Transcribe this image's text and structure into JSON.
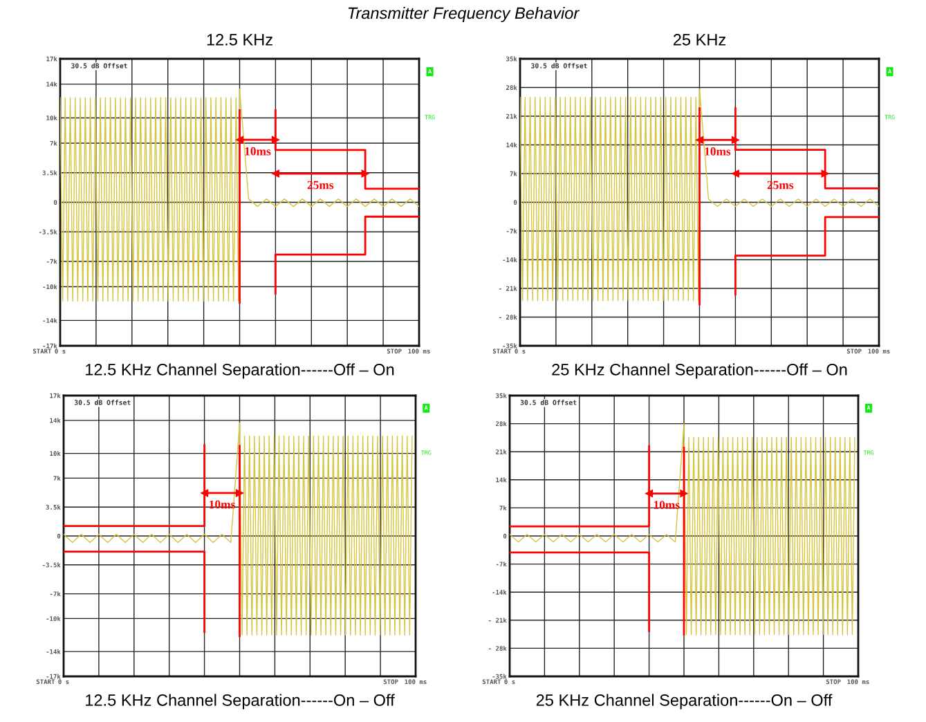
{
  "chart_data": [
    {
      "type": "line",
      "title": "Transmitter Frequency Behavior",
      "subtitle": "12.5 KHz",
      "xlabel": "12.5 KHz Channel Separation------Off – On",
      "xlim": [
        0,
        100
      ],
      "ylim": [
        -17,
        17
      ],
      "xticks": [
        {
          "value": 0,
          "label": "0 s"
        },
        {
          "value": 10,
          "label": null
        },
        {
          "value": 20,
          "label": null
        },
        {
          "value": 30,
          "label": null
        },
        {
          "value": 40,
          "label": null
        },
        {
          "value": 50,
          "label": null
        },
        {
          "value": 60,
          "label": null
        },
        {
          "value": 70,
          "label": null
        },
        {
          "value": 80,
          "label": null
        },
        {
          "value": 90,
          "label": null
        },
        {
          "value": 100,
          "label": "100 ms"
        }
      ],
      "yticks": [
        {
          "value": -17,
          "label": "-17k"
        },
        {
          "value": -14,
          "label": "-14k"
        },
        {
          "value": -10,
          "label": "-10k"
        },
        {
          "value": -7,
          "label": "-7k"
        },
        {
          "value": -3.5,
          "label": "-3.5k"
        },
        0,
        {
          "value": 3.5,
          "label": "3.5k"
        },
        {
          "value": 7,
          "label": "7k"
        },
        {
          "value": 10,
          "label": "10k"
        },
        {
          "value": 14,
          "label": "14k"
        },
        {
          "value": 17,
          "label": "17k"
        }
      ],
      "grid": true,
      "series": [
        {
          "color": "#d6c43c",
          "x": [
            0,
            0.7,
            1.4,
            2.1,
            2.8,
            3.5,
            4.2,
            4.9,
            5.6,
            6.3,
            7,
            7.7,
            8.4,
            9.1,
            9.8,
            10.5,
            11.2,
            11.9,
            12.6,
            13.3,
            14,
            14.7,
            15.4,
            16.1,
            16.8,
            17.5,
            18.2,
            18.9,
            19.6,
            20.3,
            21,
            21.7,
            22.4,
            23.1,
            23.8,
            24.5,
            25.2,
            25.9,
            26.6,
            27.3,
            28,
            28.7,
            29.4,
            30.1,
            30.8,
            31.5,
            32.2,
            32.9,
            33.6,
            34.3,
            35,
            35.7,
            36.4,
            37.1,
            37.8,
            38.5,
            39.2,
            39.9,
            40.6,
            41.3,
            42,
            42.7,
            43.4,
            44.1,
            44.8,
            45.5,
            46.2,
            46.9,
            47.6,
            48.3,
            49,
            49.7,
            50,
            52.5,
            55,
            57.5,
            60,
            62.5,
            65,
            67.5,
            70,
            72.5,
            75,
            77.5,
            80,
            82.5,
            85,
            87.5,
            90,
            92.5,
            95,
            97.5,
            100
          ],
          "values": [
            12.4,
            -11.7,
            12.4,
            -11.7,
            12.4,
            -11.7,
            12.4,
            -11.7,
            12.4,
            -11.7,
            12.4,
            -11.7,
            12.4,
            -11.7,
            12.4,
            -11.7,
            12.4,
            -11.7,
            12.4,
            -11.7,
            12.4,
            -11.7,
            12.4,
            -11.7,
            12.4,
            -11.7,
            12.4,
            -11.7,
            12.4,
            -11.7,
            12.4,
            -11.7,
            12.4,
            -11.7,
            12.4,
            -11.7,
            12.4,
            -11.7,
            12.4,
            -11.7,
            12.4,
            -11.7,
            12.4,
            -11.7,
            12.4,
            -11.7,
            12.4,
            -11.7,
            12.4,
            -11.7,
            12.4,
            -11.7,
            12.4,
            -11.7,
            12.4,
            -11.7,
            12.4,
            -11.7,
            12.4,
            -11.7,
            12.4,
            -11.7,
            12.4,
            -11.7,
            12.4,
            -11.7,
            12.4,
            -11.7,
            12.4,
            -11.7,
            12.4,
            -11.7,
            13.4,
            0.4,
            -0.5,
            0.4,
            -0.5,
            0.4,
            -0.5,
            0.4,
            -0.5,
            0.4,
            -0.5,
            0.4,
            -0.5,
            0.4,
            -0.5,
            0.4,
            -0.5,
            0.4,
            -0.5,
            0.4,
            -0.5
          ]
        },
        {
          "color": "#ff0000",
          "x": [
            60,
            60,
            85,
            85,
            100
          ],
          "values": [
            10.9,
            6.2,
            6.2,
            1.6,
            1.6
          ]
        },
        {
          "color": "#ff0000",
          "x": [
            60,
            60,
            85,
            85,
            100
          ],
          "values": [
            -10.8,
            -6.2,
            -6.2,
            -1.7,
            -1.7
          ]
        },
        {
          "color": "#ff0000",
          "x": [
            50,
            50
          ],
          "values": [
            10.9,
            -11.9
          ]
        },
        {
          "color": "#ff0000",
          "marker": "triangle",
          "x": [
            50,
            60
          ],
          "values": [
            7.4,
            7.4
          ]
        },
        {
          "color": "#ff0000",
          "marker": "triangle",
          "x": [
            60,
            85
          ],
          "values": [
            3.4,
            3.4
          ]
        }
      ],
      "annotations": [
        "30.5 dB Offset",
        "A",
        "TRG",
        "START",
        "STOP",
        "10ms",
        "25ms"
      ]
    },
    {
      "type": "line",
      "subtitle": "25 KHz",
      "xlabel": "25 KHz Channel Separation------Off – On",
      "xlim": [
        0,
        100
      ],
      "ylim": [
        -35,
        35
      ],
      "xticks": [
        {
          "value": 0,
          "label": "0 s"
        },
        {
          "value": 10,
          "label": null
        },
        {
          "value": 20,
          "label": null
        },
        {
          "value": 30,
          "label": null
        },
        {
          "value": 40,
          "label": null
        },
        {
          "value": 50,
          "label": null
        },
        {
          "value": 60,
          "label": null
        },
        {
          "value": 70,
          "label": null
        },
        {
          "value": 80,
          "label": null
        },
        {
          "value": 90,
          "label": null
        },
        {
          "value": 100,
          "label": "100 ms"
        }
      ],
      "yticks": [
        {
          "value": -35,
          "label": "-35k"
        },
        {
          "value": -28,
          "label": "- 28k"
        },
        {
          "value": -21,
          "label": "- 21k"
        },
        {
          "value": -14,
          "label": "-14k"
        },
        {
          "value": -7,
          "label": "-7k"
        },
        0,
        {
          "value": 7,
          "label": "7k"
        },
        {
          "value": 14,
          "label": "14k"
        },
        {
          "value": 21,
          "label": "21k"
        },
        {
          "value": 28,
          "label": "28k"
        },
        {
          "value": 35,
          "label": "35k"
        }
      ],
      "grid": true,
      "series": [
        {
          "color": "#d6c43c",
          "x": [
            0,
            0.7,
            1.4,
            2.1,
            2.8,
            3.5,
            4.2,
            4.9,
            5.6,
            6.3,
            7,
            7.7,
            8.4,
            9.1,
            9.8,
            10.5,
            11.2,
            11.9,
            12.6,
            13.3,
            14,
            14.7,
            15.4,
            16.1,
            16.8,
            17.5,
            18.2,
            18.9,
            19.6,
            20.3,
            21,
            21.7,
            22.4,
            23.1,
            23.8,
            24.5,
            25.2,
            25.9,
            26.6,
            27.3,
            28,
            28.7,
            29.4,
            30.1,
            30.8,
            31.5,
            32.2,
            32.9,
            33.6,
            34.3,
            35,
            35.7,
            36.4,
            37.1,
            37.8,
            38.5,
            39.2,
            39.9,
            40.6,
            41.3,
            42,
            42.7,
            43.4,
            44.1,
            44.8,
            45.5,
            46.2,
            46.9,
            47.6,
            48.3,
            49,
            49.7,
            50,
            52.5,
            55,
            57.5,
            60,
            62.5,
            65,
            67.5,
            70,
            72.5,
            75,
            77.5,
            80,
            82.5,
            85,
            87.5,
            90,
            92.5,
            95,
            97.5,
            100
          ],
          "values": [
            25.6,
            -24,
            25.6,
            -24,
            25.6,
            -24,
            25.6,
            -24,
            25.6,
            -24,
            25.6,
            -24,
            25.6,
            -24,
            25.6,
            -24,
            25.6,
            -24,
            25.6,
            -24,
            25.6,
            -24,
            25.6,
            -24,
            25.6,
            -24,
            25.6,
            -24,
            25.6,
            -24,
            25.6,
            -24,
            25.6,
            -24,
            25.6,
            -24,
            25.6,
            -24,
            25.6,
            -24,
            25.6,
            -24,
            25.6,
            -24,
            25.6,
            -24,
            25.6,
            -24,
            25.6,
            -24,
            25.6,
            -24,
            25.6,
            -24,
            25.6,
            -24,
            25.6,
            -24,
            25.6,
            -24,
            25.6,
            -24,
            25.6,
            -24,
            25.6,
            -24,
            25.6,
            -24,
            25.6,
            -24,
            25.6,
            -24,
            27.6,
            0.8,
            -1,
            0.8,
            -1,
            0.8,
            -1,
            0.8,
            -1,
            0.8,
            -1,
            0.8,
            -1,
            0.8,
            -1,
            0.8,
            -1,
            0.8,
            -1,
            0.8,
            -1
          ]
        },
        {
          "color": "#ff0000",
          "x": [
            60,
            60,
            85,
            85,
            100
          ],
          "values": [
            22.9,
            12.8,
            12.8,
            3.4,
            3.4
          ]
        },
        {
          "color": "#ff0000",
          "x": [
            60,
            60,
            85,
            85,
            100
          ],
          "values": [
            -22.5,
            -13,
            -13,
            -3.6,
            -3.6
          ]
        },
        {
          "color": "#ff0000",
          "x": [
            50,
            50
          ],
          "values": [
            22.9,
            -24.9
          ]
        },
        {
          "color": "#ff0000",
          "marker": "triangle",
          "x": [
            50,
            60
          ],
          "values": [
            15.2,
            15.2
          ]
        },
        {
          "color": "#ff0000",
          "marker": "triangle",
          "x": [
            60,
            85
          ],
          "values": [
            7,
            7
          ]
        }
      ],
      "annotations": [
        "30.5 dB Offset",
        "A",
        "TRG",
        "START",
        "STOP",
        "10ms",
        "25ms"
      ]
    },
    {
      "type": "line",
      "xlabel": "12.5 KHz Channel Separation------On – Off",
      "xlim": [
        0,
        100
      ],
      "ylim": [
        -17,
        17
      ],
      "xticks": [
        {
          "value": 0,
          "label": "0 s"
        },
        {
          "value": 10,
          "label": null
        },
        {
          "value": 20,
          "label": null
        },
        {
          "value": 30,
          "label": null
        },
        {
          "value": 40,
          "label": null
        },
        {
          "value": 50,
          "label": null
        },
        {
          "value": 60,
          "label": null
        },
        {
          "value": 70,
          "label": null
        },
        {
          "value": 80,
          "label": null
        },
        {
          "value": 90,
          "label": null
        },
        {
          "value": 100,
          "label": "100 ms"
        }
      ],
      "yticks": [
        {
          "value": -17,
          "label": "-17k"
        },
        {
          "value": -14,
          "label": "-14k"
        },
        {
          "value": -10,
          "label": "-10k"
        },
        {
          "value": -7,
          "label": "-7k"
        },
        {
          "value": -3.5,
          "label": "-3.5k"
        },
        0,
        {
          "value": 3.5,
          "label": "3.5k"
        },
        {
          "value": 7,
          "label": "7k"
        },
        {
          "value": 10,
          "label": "10k"
        },
        {
          "value": 14,
          "label": "14k"
        },
        {
          "value": 17,
          "label": "17k"
        }
      ],
      "grid": true,
      "series": [
        {
          "color": "#d6c43c",
          "x": [
            0,
            2.5,
            5,
            7.5,
            10,
            12.5,
            15,
            17.5,
            20,
            22.5,
            25,
            27.5,
            30,
            32.5,
            35,
            37.5,
            40,
            42.5,
            45,
            47.5,
            50,
            50.7,
            51.4,
            52.1,
            52.8,
            53.5,
            54.2,
            54.9,
            55.6,
            56.3,
            57,
            57.7,
            58.4,
            59.1,
            59.8,
            60.5,
            61.2,
            61.9,
            62.6,
            63.3,
            64,
            64.7,
            65.4,
            66.1,
            66.8,
            67.5,
            68.2,
            68.9,
            69.6,
            70.3,
            71,
            71.7,
            72.4,
            73.1,
            73.8,
            74.5,
            75.2,
            75.9,
            76.6,
            77.3,
            78,
            78.7,
            79.4,
            80.1,
            80.8,
            81.5,
            82.2,
            82.9,
            83.6,
            84.3,
            85,
            85.7,
            86.4,
            87.1,
            87.8,
            88.5,
            89.2,
            89.9,
            90.6,
            91.3,
            92,
            92.7,
            93.4,
            94.1,
            94.8,
            95.5,
            96.2,
            96.9,
            97.6,
            98.3,
            99
          ],
          "values": [
            0.2,
            -0.8,
            0.2,
            -0.8,
            0.2,
            -0.8,
            0.2,
            -0.8,
            0.2,
            -0.8,
            0.2,
            -0.8,
            0.2,
            -0.8,
            0.2,
            -0.8,
            0.2,
            -0.8,
            0.2,
            -0.8,
            13.7,
            -12,
            12.1,
            -12,
            12.1,
            -12,
            12.1,
            -12,
            12.1,
            -12,
            12.1,
            -12,
            12.1,
            -12,
            12.1,
            -12,
            12.1,
            -12,
            12.1,
            -12,
            12.1,
            -12,
            12.1,
            -12,
            12.1,
            -12,
            12.1,
            -12,
            12.1,
            -12,
            12.1,
            -12,
            12.1,
            -12,
            12.1,
            -12,
            12.1,
            -12,
            12.1,
            -12,
            12.1,
            -12,
            12.1,
            -12,
            12.1,
            -12,
            12.1,
            -12,
            12.1,
            -12,
            12.1,
            -12,
            12.1,
            -12,
            12.1,
            -12,
            12.1,
            -12,
            12.1,
            -12,
            12.1,
            -12,
            12.1,
            -12,
            12.1,
            -12,
            12.1,
            -12,
            12.1,
            -12,
            12.1
          ]
        },
        {
          "color": "#ff0000",
          "x": [
            0,
            40,
            40
          ],
          "values": [
            1.2,
            1.2,
            11
          ]
        },
        {
          "color": "#ff0000",
          "x": [
            0,
            40,
            40
          ],
          "values": [
            -1.9,
            -1.9,
            -11.6
          ]
        },
        {
          "color": "#ff0000",
          "x": [
            50,
            50
          ],
          "values": [
            10.9,
            -12.1
          ]
        },
        {
          "color": "#ff0000",
          "marker": "triangle",
          "x": [
            40,
            50
          ],
          "values": [
            5.2,
            5.2
          ]
        }
      ],
      "annotations": [
        "30.5 dB Offset",
        "A",
        "TRG",
        "START",
        "STOP",
        "10ms"
      ]
    },
    {
      "type": "line",
      "xlabel": "25 KHz Channel Separation------On – Off",
      "xlim": [
        0,
        100
      ],
      "ylim": [
        -35,
        35
      ],
      "xticks": [
        {
          "value": 0,
          "label": "0 s"
        },
        {
          "value": 10,
          "label": null
        },
        {
          "value": 20,
          "label": null
        },
        {
          "value": 30,
          "label": null
        },
        {
          "value": 40,
          "label": null
        },
        {
          "value": 50,
          "label": null
        },
        {
          "value": 60,
          "label": null
        },
        {
          "value": 70,
          "label": null
        },
        {
          "value": 80,
          "label": null
        },
        {
          "value": 90,
          "label": null
        },
        {
          "value": 100,
          "label": "100 ms"
        }
      ],
      "yticks": [
        {
          "value": -35,
          "label": "-35k"
        },
        {
          "value": -28,
          "label": "- 28k"
        },
        {
          "value": -21,
          "label": "- 21k"
        },
        {
          "value": -14,
          "label": "-14k"
        },
        {
          "value": -7,
          "label": "-7k"
        },
        0,
        {
          "value": 7,
          "label": "7k"
        },
        {
          "value": 14,
          "label": "14k"
        },
        {
          "value": 21,
          "label": "21k"
        },
        {
          "value": 28,
          "label": "28k"
        },
        {
          "value": 35,
          "label": "35k"
        }
      ],
      "grid": true,
      "series": [
        {
          "color": "#d6c43c",
          "x": [
            0,
            2.5,
            5,
            7.5,
            10,
            12.5,
            15,
            17.5,
            20,
            22.5,
            25,
            27.5,
            30,
            32.5,
            35,
            37.5,
            40,
            42.5,
            45,
            47.5,
            50,
            50.7,
            51.4,
            52.1,
            52.8,
            53.5,
            54.2,
            54.9,
            55.6,
            56.3,
            57,
            57.7,
            58.4,
            59.1,
            59.8,
            60.5,
            61.2,
            61.9,
            62.6,
            63.3,
            64,
            64.7,
            65.4,
            66.1,
            66.8,
            67.5,
            68.2,
            68.9,
            69.6,
            70.3,
            71,
            71.7,
            72.4,
            73.1,
            73.8,
            74.5,
            75.2,
            75.9,
            76.6,
            77.3,
            78,
            78.7,
            79.4,
            80.1,
            80.8,
            81.5,
            82.2,
            82.9,
            83.6,
            84.3,
            85,
            85.7,
            86.4,
            87.1,
            87.8,
            88.5,
            89.2,
            89.9,
            90.6,
            91.3,
            92,
            92.7,
            93.4,
            94.1,
            94.8,
            95.5,
            96.2,
            96.9,
            97.6,
            98.3,
            99
          ],
          "values": [
            0.4,
            -1.5,
            0.4,
            -1.5,
            0.4,
            -1.5,
            0.4,
            -1.5,
            0.4,
            -1.5,
            0.4,
            -1.5,
            0.4,
            -1.5,
            0.4,
            -1.5,
            0.4,
            -1.5,
            0.4,
            -1.5,
            28,
            -24.6,
            24.6,
            -24.6,
            24.6,
            -24.6,
            24.6,
            -24.6,
            24.6,
            -24.6,
            24.6,
            -24.6,
            24.6,
            -24.6,
            24.6,
            -24.6,
            24.6,
            -24.6,
            24.6,
            -24.6,
            24.6,
            -24.6,
            24.6,
            -24.6,
            24.6,
            -24.6,
            24.6,
            -24.6,
            24.6,
            -24.6,
            24.6,
            -24.6,
            24.6,
            -24.6,
            24.6,
            -24.6,
            24.6,
            -24.6,
            24.6,
            -24.6,
            24.6,
            -24.6,
            24.6,
            -24.6,
            24.6,
            -24.6,
            24.6,
            -24.6,
            24.6,
            -24.6,
            24.6,
            -24.6,
            24.6,
            -24.6,
            24.6,
            -24.6,
            24.6,
            -24.6,
            24.6,
            -24.6,
            24.6,
            -24.6,
            24.6,
            -24.6,
            24.6,
            -24.6,
            24.6,
            -24.6,
            24.6,
            -24.6,
            24.6
          ]
        },
        {
          "color": "#ff0000",
          "x": [
            0,
            40,
            40
          ],
          "values": [
            2.4,
            2.4,
            22.4
          ]
        },
        {
          "color": "#ff0000",
          "x": [
            0,
            40,
            40
          ],
          "values": [
            -4.1,
            -4.1,
            -23.7
          ]
        },
        {
          "color": "#ff0000",
          "x": [
            50,
            50
          ],
          "values": [
            22,
            -24.6
          ]
        },
        {
          "color": "#ff0000",
          "marker": "triangle",
          "x": [
            40,
            50
          ],
          "values": [
            10.6,
            10.6
          ]
        }
      ],
      "annotations": [
        "30.5 dB Offset",
        "A",
        "TRG",
        "START",
        "STOP",
        "10ms"
      ]
    }
  ]
}
